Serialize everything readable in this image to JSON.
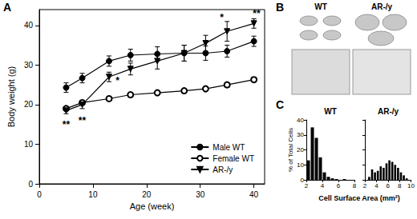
{
  "chart_data": [
    {
      "type": "line",
      "panel": "A",
      "xlabel": "Age (week)",
      "ylabel": "Body weight (g)",
      "xlim": [
        0,
        42
      ],
      "xticks": [
        0,
        10,
        20,
        30,
        40
      ],
      "ylim": [
        0,
        44
      ],
      "yticks": [
        0,
        10,
        20,
        30,
        40
      ],
      "grid": false,
      "legend": "lower right",
      "x": [
        5,
        8,
        13,
        17,
        22,
        27,
        31,
        35,
        40
      ],
      "series": [
        {
          "name": "Male WT",
          "color": "#000000",
          "marker": "circle",
          "line_style": "solid",
          "values": [
            24.3,
            26.7,
            31,
            32.5,
            32.8,
            33,
            33,
            33.5,
            36
          ],
          "errors": [
            1.2,
            1.2,
            1.3,
            1.5,
            1.8,
            2,
            1.8,
            1.5,
            1.3
          ]
        },
        {
          "name": "Female WT",
          "color": "#000000",
          "marker": "open_circle",
          "line_style": "solid",
          "values": [
            19,
            20.5,
            21.5,
            22.5,
            23,
            23.5,
            24,
            25,
            26.3
          ],
          "errors": [
            0.5,
            0.5,
            0.5,
            0.5,
            0.5,
            0.5,
            0.5,
            0.5,
            0.6
          ]
        },
        {
          "name": "AR-/y",
          "color": "#000000",
          "marker": "triangle_down",
          "line_style": "solid",
          "values": [
            18.5,
            20,
            27,
            29,
            31,
            33,
            35.5,
            38.5,
            40.5
          ],
          "errors": [
            0.8,
            1,
            1.2,
            1.5,
            2,
            2,
            2,
            2.5,
            1.2
          ]
        }
      ],
      "annotations": [
        {
          "text": "**",
          "x": 5,
          "y": 15
        },
        {
          "text": "**",
          "x": 8,
          "y": 16
        },
        {
          "text": "*",
          "x": 14.6,
          "y": 26
        },
        {
          "text": "*",
          "x": 34,
          "y": 42
        },
        {
          "text": "**",
          "x": 40.5,
          "y": 43
        }
      ]
    },
    {
      "type": "histogram",
      "panel": "C",
      "title": "WT",
      "xlabel": "Cell Surface Area (mm²)",
      "ylabel": "% of Total Cells",
      "xlim": [
        2,
        8
      ],
      "xticks": [
        2,
        4,
        6,
        8
      ],
      "ylim": [
        0,
        40
      ],
      "yticks": [
        0,
        10,
        20,
        30,
        40
      ],
      "color": "#000000",
      "bins": [
        2,
        2.5,
        3,
        3.5,
        4,
        4.5,
        5,
        5.5,
        6,
        6.5,
        7
      ],
      "counts": [
        13,
        35,
        28,
        15,
        5,
        2,
        1,
        0.5,
        0,
        0.5
      ]
    },
    {
      "type": "histogram",
      "title": "AR-/y",
      "tick_labels": "x",
      "xlim": [
        2,
        10
      ],
      "xticks": [
        2,
        4,
        6,
        8,
        10
      ],
      "ylim": [
        0,
        40
      ],
      "yticks": [
        0,
        10,
        20,
        30,
        40
      ],
      "color": "#000000",
      "bins": [
        2.5,
        3,
        3.5,
        4,
        4.5,
        5,
        5.5,
        6,
        6.5,
        7,
        7.5,
        8,
        8.5,
        9,
        9.5
      ],
      "counts": [
        2,
        7,
        5,
        6,
        9,
        8,
        11,
        13,
        12,
        10,
        8,
        5,
        3,
        1
      ]
    }
  ],
  "image_panel": {
    "panel": "B",
    "captions": [
      "WT",
      "AR-/y"
    ]
  }
}
